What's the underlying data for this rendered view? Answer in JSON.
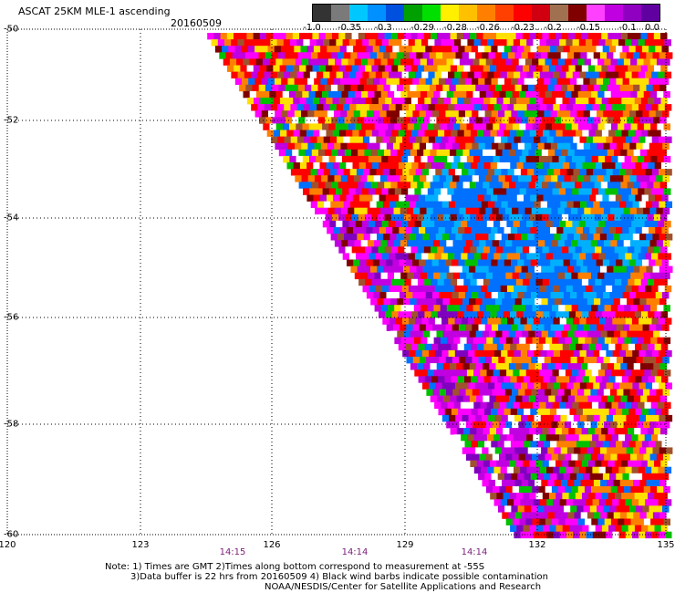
{
  "header": {
    "title": "ASCAT 25KM MLE-1 ascending",
    "date": "20160509"
  },
  "colorbar": {
    "colors": [
      "#333333",
      "#7a7a7a",
      "#00c8ff",
      "#0090ff",
      "#0050e0",
      "#00a000",
      "#00e000",
      "#fff000",
      "#ffc000",
      "#ff8000",
      "#ff4000",
      "#ff0000",
      "#d00010",
      "#a07050",
      "#800000",
      "#ff40ff",
      "#c000e0",
      "#9000c0",
      "#6000a0"
    ],
    "labels": [
      "-1.0",
      "-0.35",
      "-0.3",
      "-0.29",
      "-0.28",
      "-0.26",
      "-0.23",
      "-0.2",
      "-0.15",
      "-0.1",
      "0.0"
    ]
  },
  "axes": {
    "lat_labels": [
      "-50",
      "-52",
      "-54",
      "-56",
      "-58",
      "-60"
    ],
    "lon_labels": [
      "120",
      "123",
      "126",
      "129",
      "132",
      "135"
    ],
    "time_labels": [
      "14:15",
      "14:14",
      "14:14"
    ]
  },
  "notes": {
    "line1": "Note: 1) Times are GMT 2)Times along bottom correspond to measurement at -55S",
    "line2": "3)Data buffer is 22 hrs from 20160509 4) Black wind barbs indicate possible contamination",
    "line3": "NOAA/NESDIS/Center for Satellite Applications and Research"
  },
  "palette": {
    "magenta": "#ff00ff",
    "violet": "#c000e0",
    "purple": "#8000c0",
    "blue": "#0070ff",
    "cyan": "#00b0ff",
    "red": "#ff0000",
    "orange": "#ff8000",
    "yellow": "#ffe000",
    "green": "#00c000",
    "brown": "#a0522d",
    "maroon": "#800000",
    "white": "#ffffff"
  }
}
